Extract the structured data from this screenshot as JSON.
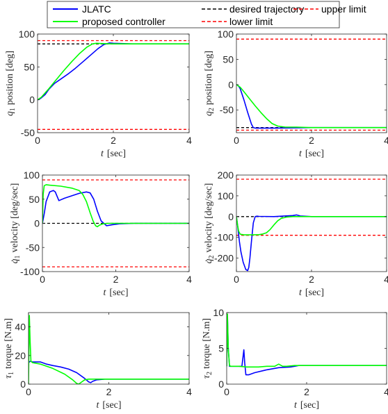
{
  "legend": {
    "entries": [
      {
        "label": "JLATC",
        "color": "#0000ff",
        "style": "solid"
      },
      {
        "label": "proposed controller",
        "color": "#00ff00",
        "style": "solid"
      },
      {
        "label": "desired trajectory",
        "color": "#000000",
        "style": "dashed"
      },
      {
        "label": "upper limit",
        "color": "#ff0000",
        "style": "dashed"
      },
      {
        "label": "lower limit",
        "color": "#ff0000",
        "style": "dashed"
      }
    ]
  },
  "chart_data": [
    {
      "type": "line",
      "xlabel_var": "t",
      "xlabel_unit": "[sec]",
      "ylabel_var": "q",
      "ylabel_sub": "1",
      "ylabel_text": "position [deg]",
      "xlim": [
        0,
        4
      ],
      "ylim": [
        -50,
        100
      ],
      "xticks": [
        0,
        2,
        4
      ],
      "yticks": [
        -50,
        0,
        50,
        100
      ],
      "series": [
        {
          "name": "JLATC",
          "color": "#0000ff",
          "x": [
            0,
            0.05,
            0.1,
            0.2,
            0.3,
            0.45,
            0.6,
            0.8,
            1.0,
            1.2,
            1.4,
            1.6,
            1.75,
            1.9,
            2.0,
            2.5,
            3,
            4
          ],
          "y": [
            0,
            1,
            3,
            8,
            16,
            25,
            31,
            39,
            48,
            58,
            68,
            78,
            84,
            86.5,
            86,
            85,
            85,
            85
          ]
        },
        {
          "name": "proposed controller",
          "color": "#00ff00",
          "x": [
            0,
            0.1,
            0.3,
            0.5,
            0.7,
            0.9,
            1.1,
            1.3,
            1.45,
            1.55,
            1.7,
            2.0,
            4
          ],
          "y": [
            0,
            4,
            17,
            31,
            45,
            58,
            70,
            80,
            85,
            86,
            85.5,
            85,
            85
          ]
        },
        {
          "name": "desired trajectory",
          "color": "#000000",
          "dashed": true,
          "x": [
            0,
            4
          ],
          "y": [
            85,
            85
          ]
        },
        {
          "name": "upper limit",
          "color": "#ff0000",
          "dashed": true,
          "x": [
            0,
            4
          ],
          "y": [
            90,
            90
          ]
        },
        {
          "name": "lower limit",
          "color": "#ff0000",
          "dashed": true,
          "x": [
            0,
            4
          ],
          "y": [
            -45,
            -45
          ]
        }
      ]
    },
    {
      "type": "line",
      "xlabel_var": "t",
      "xlabel_unit": "[sec]",
      "ylabel_var": "q",
      "ylabel_sub": "2",
      "ylabel_text": "position [deg]",
      "xlim": [
        0,
        4
      ],
      "ylim": [
        -95,
        100
      ],
      "xticks": [
        0,
        2,
        4
      ],
      "yticks": [
        -50,
        0,
        50,
        100
      ],
      "series": [
        {
          "name": "JLATC",
          "color": "#0000ff",
          "x": [
            0,
            0.05,
            0.1,
            0.2,
            0.3,
            0.4,
            0.45,
            0.5,
            1.0,
            1.5,
            2.0,
            4
          ],
          "y": [
            0,
            -2,
            -8,
            -30,
            -55,
            -78,
            -85,
            -86,
            -86,
            -85.5,
            -85,
            -85
          ]
        },
        {
          "name": "proposed controller",
          "color": "#00ff00",
          "x": [
            0,
            0.1,
            0.2,
            0.35,
            0.5,
            0.65,
            0.8,
            0.95,
            1.1,
            1.3,
            1.6,
            2.0,
            4
          ],
          "y": [
            0,
            -5,
            -14,
            -28,
            -42,
            -55,
            -67,
            -77,
            -82,
            -84,
            -84,
            -85,
            -85
          ]
        },
        {
          "name": "desired trajectory",
          "color": "#000000",
          "dashed": true,
          "x": [
            0,
            4
          ],
          "y": [
            -85,
            -85
          ]
        },
        {
          "name": "upper limit",
          "color": "#ff0000",
          "dashed": true,
          "x": [
            0,
            4
          ],
          "y": [
            90,
            90
          ]
        },
        {
          "name": "lower limit",
          "color": "#ff0000",
          "dashed": true,
          "x": [
            0,
            4
          ],
          "y": [
            -90,
            -90
          ]
        }
      ]
    },
    {
      "type": "line",
      "xlabel_var": "t",
      "xlabel_unit": "[sec]",
      "ylabel_var": "q̇",
      "ylabel_sub": "1",
      "ylabel_text": "velocity [deg/sec]",
      "xlim": [
        0,
        4
      ],
      "ylim": [
        -100,
        100
      ],
      "xticks": [
        0,
        2,
        4
      ],
      "yticks": [
        -100,
        -50,
        0,
        50,
        100
      ],
      "series": [
        {
          "name": "JLATC",
          "color": "#0000ff",
          "x": [
            0,
            0.05,
            0.1,
            0.2,
            0.3,
            0.35,
            0.45,
            0.6,
            0.8,
            1.0,
            1.2,
            1.3,
            1.4,
            1.5,
            1.6,
            1.75,
            1.9,
            2.1,
            2.5,
            4
          ],
          "y": [
            0,
            20,
            45,
            65,
            68,
            65,
            47,
            52,
            57,
            62,
            65,
            63,
            50,
            25,
            5,
            -5,
            -3,
            -1,
            0,
            0
          ]
        },
        {
          "name": "proposed controller",
          "color": "#00ff00",
          "x": [
            0,
            0.02,
            0.05,
            0.1,
            0.2,
            0.5,
            0.8,
            1.0,
            1.1,
            1.2,
            1.3,
            1.38,
            1.45,
            1.5,
            1.55,
            1.65,
            1.8,
            2.0,
            4
          ],
          "y": [
            0,
            60,
            78,
            80,
            79,
            77,
            73,
            68,
            60,
            45,
            22,
            5,
            -5,
            -7,
            -4,
            -1,
            0,
            0,
            0
          ]
        },
        {
          "name": "desired trajectory",
          "color": "#000000",
          "dashed": true,
          "x": [
            0,
            4
          ],
          "y": [
            0,
            0
          ]
        },
        {
          "name": "upper limit",
          "color": "#ff0000",
          "dashed": true,
          "x": [
            0,
            4
          ],
          "y": [
            90,
            90
          ]
        },
        {
          "name": "lower limit",
          "color": "#ff0000",
          "dashed": true,
          "x": [
            0,
            4
          ],
          "y": [
            -90,
            -90
          ]
        }
      ]
    },
    {
      "type": "line",
      "xlabel_var": "t",
      "xlabel_unit": "[sec]",
      "ylabel_var": "q̇",
      "ylabel_sub": "2",
      "ylabel_text": "velocity [deg/sec]",
      "xlim": [
        0,
        4
      ],
      "ylim": [
        -265,
        200
      ],
      "xticks": [
        0,
        2,
        4
      ],
      "yticks": [
        -200,
        -100,
        0,
        100,
        200
      ],
      "series": [
        {
          "name": "JLATC",
          "color": "#0000ff",
          "x": [
            0,
            0.03,
            0.08,
            0.12,
            0.18,
            0.25,
            0.3,
            0.33,
            0.36,
            0.4,
            0.45,
            0.5,
            0.55,
            0.6,
            1.0,
            1.5,
            1.6,
            1.7,
            2.0,
            4
          ],
          "y": [
            0,
            -40,
            -120,
            -170,
            -220,
            -255,
            -260,
            -245,
            -200,
            -120,
            -30,
            0,
            2,
            1,
            0,
            5,
            8,
            3,
            0,
            0
          ]
        },
        {
          "name": "proposed controller",
          "color": "#00ff00",
          "x": [
            0,
            0.03,
            0.06,
            0.1,
            0.2,
            0.4,
            0.6,
            0.7,
            0.8,
            0.9,
            1.0,
            1.1,
            1.2,
            1.35,
            1.5,
            1.7,
            2.0,
            4
          ],
          "y": [
            0,
            -40,
            -70,
            -85,
            -88,
            -88,
            -87,
            -84,
            -78,
            -62,
            -40,
            -20,
            -8,
            -2,
            0,
            0,
            0,
            0
          ]
        },
        {
          "name": "desired trajectory",
          "color": "#000000",
          "dashed": true,
          "x": [
            0,
            4
          ],
          "y": [
            0,
            0
          ]
        },
        {
          "name": "upper limit",
          "color": "#ff0000",
          "dashed": true,
          "x": [
            0,
            4
          ],
          "y": [
            180,
            180
          ]
        },
        {
          "name": "lower limit",
          "color": "#ff0000",
          "dashed": true,
          "x": [
            0,
            4
          ],
          "y": [
            -90,
            -90
          ]
        }
      ]
    },
    {
      "type": "line",
      "xlabel_var": "t",
      "xlabel_unit": "[sec]",
      "ylabel_var": "τ",
      "ylabel_sub": "1",
      "ylabel_text": "torque [N.m]",
      "xlim": [
        0,
        4
      ],
      "ylim": [
        0,
        50
      ],
      "xticks": [
        0,
        2,
        4
      ],
      "yticks": [
        0,
        20,
        40
      ],
      "series": [
        {
          "name": "JLATC",
          "color": "#0000ff",
          "x": [
            0,
            0.02,
            0.05,
            0.1,
            0.3,
            0.45,
            0.6,
            0.8,
            1.0,
            1.2,
            1.4,
            1.5,
            1.55,
            1.6,
            1.7,
            1.9,
            2.0,
            4
          ],
          "y": [
            15,
            15.5,
            16,
            15.5,
            15.5,
            14,
            13,
            12,
            10.5,
            8,
            4,
            1.5,
            1,
            2,
            3,
            3.5,
            3.5,
            3.5
          ]
        },
        {
          "name": "proposed controller",
          "color": "#00ff00",
          "x": [
            0,
            0.02,
            0.04,
            0.06,
            0.1,
            0.3,
            0.6,
            0.9,
            1.1,
            1.2,
            1.25,
            1.3,
            1.4,
            1.5,
            2.0,
            4
          ],
          "y": [
            0,
            48,
            30,
            16,
            15,
            14,
            11,
            7,
            3,
            0.5,
            0,
            1,
            3,
            3.5,
            3.5,
            3.5
          ]
        }
      ]
    },
    {
      "type": "line",
      "xlabel_var": "t",
      "xlabel_unit": "[sec]",
      "ylabel_var": "τ",
      "ylabel_sub": "2",
      "ylabel_text": "torque [N.m]",
      "xlim": [
        0,
        4
      ],
      "ylim": [
        0,
        10
      ],
      "xticks": [
        0,
        2,
        4
      ],
      "yticks": [
        0,
        5,
        10
      ],
      "series": [
        {
          "name": "JLATC",
          "color": "#0000ff",
          "x": [
            0,
            0.02,
            0.04,
            0.07,
            0.1,
            0.3,
            0.38,
            0.43,
            0.45,
            0.48,
            0.55,
            0.7,
            1.0,
            1.3,
            1.6,
            1.8,
            2.0,
            4
          ],
          "y": [
            2.5,
            9.5,
            5,
            2.5,
            2.5,
            2.5,
            2.5,
            4.8,
            3,
            1.3,
            1.3,
            1.6,
            2,
            2.3,
            2.4,
            2.6,
            2.6,
            2.6
          ]
        },
        {
          "name": "proposed controller",
          "color": "#00ff00",
          "x": [
            0,
            0.02,
            0.04,
            0.07,
            0.1,
            0.3,
            0.5,
            0.8,
            1.0,
            1.2,
            1.3,
            1.4,
            1.5,
            1.7,
            2.0,
            4
          ],
          "y": [
            2.5,
            9.8,
            5,
            2.6,
            2.5,
            2.5,
            2.4,
            2.4,
            2.5,
            2.5,
            2.8,
            2.5,
            2.5,
            2.6,
            2.6,
            2.6
          ]
        }
      ]
    }
  ]
}
